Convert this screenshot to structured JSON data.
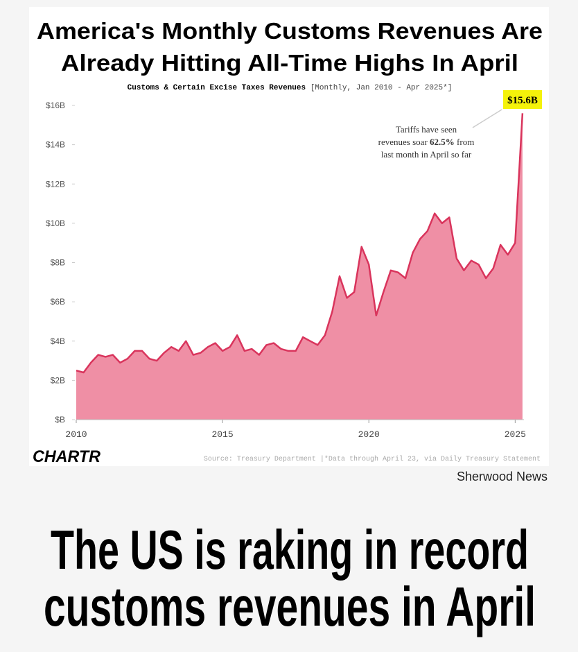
{
  "chart_data": {
    "type": "area",
    "title": [
      "America's Monthly Customs Revenues Are",
      "Already Hitting All-Time Highs In April"
    ],
    "subtitle": "Customs & Certain Excise Taxes Revenues",
    "subtitle_note": "[Monthly, Jan 2010 - Apr 2025*]",
    "x": [
      2010.0,
      2010.25,
      2010.5,
      2010.75,
      2011.0,
      2011.25,
      2011.5,
      2011.75,
      2012.0,
      2012.25,
      2012.5,
      2012.75,
      2013.0,
      2013.25,
      2013.5,
      2013.75,
      2014.0,
      2014.25,
      2014.5,
      2014.75,
      2015.0,
      2015.25,
      2015.5,
      2015.75,
      2016.0,
      2016.25,
      2016.5,
      2016.75,
      2017.0,
      2017.25,
      2017.5,
      2017.75,
      2018.0,
      2018.25,
      2018.5,
      2018.75,
      2019.0,
      2019.25,
      2019.5,
      2019.75,
      2020.0,
      2020.25,
      2020.5,
      2020.75,
      2021.0,
      2021.25,
      2021.5,
      2021.75,
      2022.0,
      2022.25,
      2022.5,
      2022.75,
      2023.0,
      2023.25,
      2023.5,
      2023.75,
      2024.0,
      2024.25,
      2024.5,
      2024.75,
      2025.0,
      2025.25
    ],
    "series": [
      {
        "name": "Customs & Certain Excise Taxes Revenues",
        "color": "#d9345c",
        "fill": "#ef8fa5",
        "values": [
          2.5,
          2.4,
          2.9,
          3.3,
          3.2,
          3.3,
          2.9,
          3.1,
          3.5,
          3.5,
          3.1,
          3.0,
          3.4,
          3.7,
          3.5,
          4.0,
          3.3,
          3.4,
          3.7,
          3.9,
          3.5,
          3.7,
          4.3,
          3.5,
          3.6,
          3.3,
          3.8,
          3.9,
          3.6,
          3.5,
          3.5,
          4.2,
          4.0,
          3.8,
          4.3,
          5.5,
          7.3,
          6.2,
          6.5,
          8.8,
          7.9,
          5.3,
          6.5,
          7.6,
          7.5,
          7.2,
          8.5,
          9.2,
          9.6,
          10.5,
          10.0,
          10.3,
          8.2,
          7.6,
          8.1,
          7.9,
          7.2,
          7.7,
          8.9,
          8.4,
          9.0,
          15.6
        ]
      }
    ],
    "xlim": [
      2010,
      2025.3
    ],
    "xticks": [
      2010,
      2015,
      2020,
      2025
    ],
    "ylim": [
      0,
      16
    ],
    "yticks": [
      {
        "value": 0,
        "label": "$B"
      },
      {
        "value": 2,
        "label": "$2B"
      },
      {
        "value": 4,
        "label": "$4B"
      },
      {
        "value": 6,
        "label": "$6B"
      },
      {
        "value": 8,
        "label": "$8B"
      },
      {
        "value": 10,
        "label": "$10B"
      },
      {
        "value": 12,
        "label": "$12B"
      },
      {
        "value": 14,
        "label": "$14B"
      },
      {
        "value": 16,
        "label": "$16B"
      }
    ],
    "grid": false,
    "callout": "$15.6B",
    "annotation": [
      "Tariffs have seen",
      "revenues soar ",
      "62.5%",
      " from",
      "last month in April so far"
    ],
    "logo": "CHARTR",
    "source": "Source: Treasury Department |*Data through April 23, via Daily Treasury Statement"
  },
  "publisher": "Sherwood News",
  "headline": [
    "The US is raking in record",
    "customs revenues in April"
  ]
}
